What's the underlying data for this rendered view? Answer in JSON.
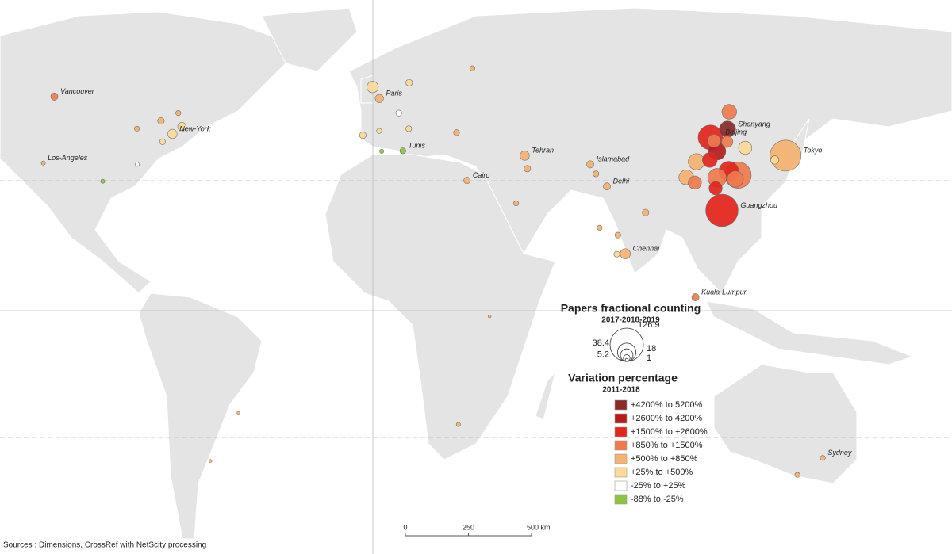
{
  "size_legend": {
    "title": "Papers fractional counting",
    "subtitle": "2017-2018-2019",
    "values": [
      126.9,
      38.4,
      18,
      5.2,
      1
    ]
  },
  "color_legend": {
    "title": "Variation percentage",
    "subtitle": "2011-2018",
    "classes": [
      {
        "label": "+4200% to 5200%",
        "color": "#8b2a2a"
      },
      {
        "label": "+2600% to 4200%",
        "color": "#b71c1c"
      },
      {
        "label": "+1500% to +2600%",
        "color": "#e3241b"
      },
      {
        "label": "+850% to +1500%",
        "color": "#ef7a4e"
      },
      {
        "label": "+500% to +850%",
        "color": "#f6b26f"
      },
      {
        "label": "+25% to +500%",
        "color": "#fddb97"
      },
      {
        "label": "-25% to +25%",
        "color": "#ffffff"
      },
      {
        "label": "-88% to -25%",
        "color": "#8cc63f"
      }
    ]
  },
  "points": [
    {
      "name": "Tokyo",
      "lon": 139.7,
      "lat": 35.7,
      "papers": 110,
      "class": 4
    },
    {
      "name": "Shenyang",
      "lon": 123.4,
      "lat": 41.8,
      "papers": 30,
      "class": 0
    },
    {
      "name": "Beijing",
      "lon": 116.4,
      "lat": 39.9,
      "papers": 70,
      "class": 2
    },
    {
      "name": "Guangzhou",
      "lon": 113.3,
      "lat": 23.1,
      "papers": 120,
      "class": 2
    },
    {
      "lon": 121.5,
      "lat": 31.2,
      "papers": 80,
      "class": 3
    },
    {
      "lon": 114.3,
      "lat": 30.6,
      "papers": 40,
      "class": 3
    },
    {
      "lon": 118.8,
      "lat": 32.1,
      "papers": 45,
      "class": 2
    },
    {
      "lon": 108.9,
      "lat": 34.3,
      "papers": 30,
      "class": 4
    },
    {
      "lon": 104.1,
      "lat": 30.7,
      "papers": 25,
      "class": 4
    },
    {
      "lon": 126.6,
      "lat": 45.8,
      "papers": 25,
      "class": 3
    },
    {
      "lon": 112.9,
      "lat": 28.2,
      "papers": 20,
      "class": 2
    },
    {
      "lon": 117,
      "lat": 36.7,
      "papers": 35,
      "class": 1
    },
    {
      "lon": 120.2,
      "lat": 30.3,
      "papers": 30,
      "class": 3
    },
    {
      "lon": 117.2,
      "lat": 39.1,
      "papers": 20,
      "class": 3
    },
    {
      "lon": 106.5,
      "lat": 29.5,
      "papers": 20,
      "class": 3
    },
    {
      "lon": 113.6,
      "lat": 34.7,
      "papers": 25,
      "class": 2
    },
    {
      "lon": 121.6,
      "lat": 38.9,
      "papers": 15,
      "class": 3
    },
    {
      "lon": 127,
      "lat": 37.5,
      "papers": 20,
      "class": 5
    },
    {
      "lon": 135.5,
      "lat": 34.7,
      "papers": 8,
      "class": 5
    },
    {
      "name": "Delhi",
      "lon": 77.2,
      "lat": 28.6,
      "papers": 6,
      "class": 4
    },
    {
      "name": "Chennai",
      "lon": 80.3,
      "lat": 13.1,
      "papers": 12,
      "class": 4
    },
    {
      "lon": 72.9,
      "lat": 19.1,
      "papers": 3,
      "class": 4
    },
    {
      "lon": 77.6,
      "lat": 13,
      "papers": 4,
      "class": 5
    },
    {
      "lon": 78.5,
      "lat": 17.4,
      "papers": 4,
      "class": 4
    },
    {
      "lon": 88.4,
      "lat": 22.6,
      "papers": 5,
      "class": 4
    },
    {
      "name": "Islamabad",
      "lon": 73,
      "lat": 33.7,
      "papers": 6,
      "class": 4
    },
    {
      "lon": 74.3,
      "lat": 31.5,
      "papers": 4,
      "class": 4
    },
    {
      "name": "Tehran",
      "lon": 51.4,
      "lat": 35.7,
      "papers": 10,
      "class": 4
    },
    {
      "lon": 51.7,
      "lat": 32.7,
      "papers": 5,
      "class": 4
    },
    {
      "name": "Cairo",
      "lon": 31.2,
      "lat": 30,
      "papers": 5,
      "class": 4
    },
    {
      "lon": 46.7,
      "lat": 24.7,
      "papers": 3,
      "class": 4
    },
    {
      "name": "Kuala-Lumpur",
      "lon": 101.7,
      "lat": 3.1,
      "papers": 6,
      "class": 3
    },
    {
      "name": "Sydney",
      "lon": 151.2,
      "lat": -33.9,
      "papers": 3,
      "class": 4
    },
    {
      "lon": 145,
      "lat": -37.8,
      "papers": 3,
      "class": 4
    },
    {
      "name": "Paris",
      "lon": 2.35,
      "lat": 48.85,
      "papers": 8,
      "class": 4
    },
    {
      "lon": -0.1,
      "lat": 51.5,
      "papers": 15,
      "class": 5
    },
    {
      "lon": -3.7,
      "lat": 40.4,
      "papers": 5,
      "class": 5
    },
    {
      "lon": 12.5,
      "lat": 41.9,
      "papers": 4,
      "class": 5
    },
    {
      "lon": 13.4,
      "lat": 52.5,
      "papers": 5,
      "class": 5
    },
    {
      "name": "Tunis",
      "lon": 10.2,
      "lat": 36.8,
      "papers": 4,
      "class": 7
    },
    {
      "lon": 37.6,
      "lat": 55.8,
      "papers": 3,
      "class": 4
    },
    {
      "lon": 29,
      "lat": 41,
      "papers": 4,
      "class": 4
    },
    {
      "lon": 3,
      "lat": 36.7,
      "papers": 2,
      "class": 7
    },
    {
      "lon": 2.2,
      "lat": 41.4,
      "papers": 3,
      "class": 5
    },
    {
      "lon": 9.2,
      "lat": 45.5,
      "papers": 4,
      "class": 6
    },
    {
      "name": "Vancouver",
      "lon": -123.1,
      "lat": 49.3,
      "papers": 6,
      "class": 3
    },
    {
      "name": "Los-Angeles",
      "lon": -118.2,
      "lat": 34,
      "papers": 2,
      "class": 4
    },
    {
      "name": "New-York",
      "lon": -74,
      "lat": 40.7,
      "papers": 10,
      "class": 5
    },
    {
      "lon": -71.1,
      "lat": 42.4,
      "papers": 8,
      "class": 5
    },
    {
      "lon": -79.4,
      "lat": 43.7,
      "papers": 5,
      "class": 4
    },
    {
      "lon": -87.6,
      "lat": 41.9,
      "papers": 3,
      "class": 4
    },
    {
      "lon": -84.4,
      "lat": 33.7,
      "papers": 2,
      "class": 6
    },
    {
      "lon": -77,
      "lat": 38.9,
      "papers": 4,
      "class": 5
    },
    {
      "lon": -95.4,
      "lat": 29.8,
      "papers": 2,
      "class": 7
    },
    {
      "lon": -73.6,
      "lat": 45.5,
      "papers": 3,
      "class": 4
    },
    {
      "lon": -58.4,
      "lat": -34.6,
      "papers": 1,
      "class": 4
    },
    {
      "lon": -46.6,
      "lat": -23.5,
      "papers": 1,
      "class": 4
    },
    {
      "lon": 28,
      "lat": -26.2,
      "papers": 2,
      "class": 4
    },
    {
      "lon": 36.8,
      "lat": -1.3,
      "papers": 1,
      "class": 4
    }
  ],
  "scale_bar": {
    "ticks": [
      0,
      250,
      {
        "value": 500,
        "label": "500 km"
      }
    ]
  },
  "source": "Sources : Dimensions, CrossRef with NetScity processing"
}
